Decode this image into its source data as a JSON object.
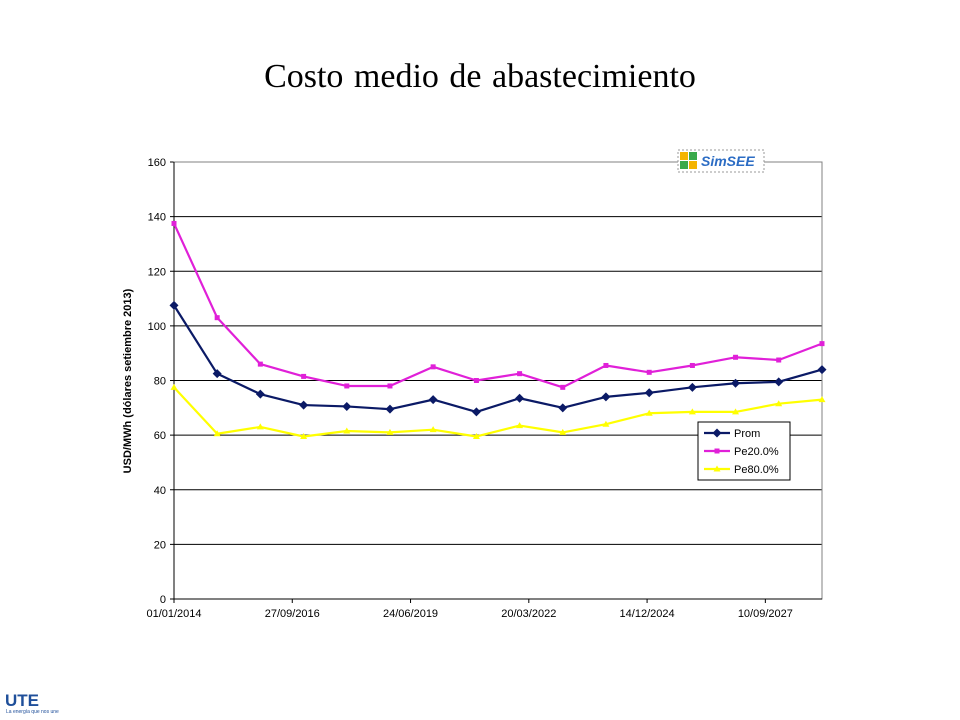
{
  "title": "Costo medio de abastecimiento",
  "brand": {
    "simsee_label": "SimSEE",
    "ute_label": "UTE",
    "ute_tagline": "La energía que nos une"
  },
  "colors": {
    "prom": "#0b1a66",
    "pe20": "#e020d8",
    "pe80": "#ffff00",
    "grid": "#000000"
  },
  "chart_data": {
    "type": "line",
    "title": "",
    "xlabel": "",
    "ylabel": "USD/MWh (dólares setiembre 2013)",
    "ylim": [
      0,
      160
    ],
    "yticks": [
      0,
      20,
      40,
      60,
      80,
      100,
      120,
      140,
      160
    ],
    "xtick_labels": [
      "01/01/2014",
      "27/09/2016",
      "24/06/2019",
      "20/03/2022",
      "14/12/2024",
      "10/09/2027"
    ],
    "xtick_dates": [
      "2014-01-01",
      "2016-09-27",
      "2019-06-24",
      "2022-03-20",
      "2024-12-14",
      "2027-09-10"
    ],
    "x": [
      "2014-01-01",
      "2015-01-01",
      "2016-01-01",
      "2017-01-01",
      "2018-01-01",
      "2019-01-01",
      "2020-01-01",
      "2021-01-01",
      "2022-01-01",
      "2023-01-01",
      "2024-01-01",
      "2025-01-01",
      "2026-01-01",
      "2027-01-01",
      "2028-01-01",
      "2029-01-01"
    ],
    "grid": true,
    "legend": "bottom-right",
    "series": [
      {
        "name": "Prom",
        "marker": "diamond",
        "values": [
          107.5,
          82.5,
          75,
          71,
          70.5,
          69.5,
          73,
          68.5,
          73.5,
          70,
          74,
          75.5,
          77.5,
          79,
          79.5,
          84
        ]
      },
      {
        "name": "Pe20.0%",
        "marker": "square",
        "values": [
          137.5,
          103,
          86,
          81.5,
          78,
          78,
          85,
          80,
          82.5,
          77.5,
          85.5,
          83,
          85.5,
          88.5,
          87.5,
          93.5
        ]
      },
      {
        "name": "Pe80.0%",
        "marker": "triangle",
        "values": [
          77.5,
          60.5,
          63,
          59.5,
          61.5,
          61,
          62,
          59.5,
          63.5,
          61,
          64,
          68,
          68.5,
          68.5,
          71.5,
          73
        ]
      }
    ]
  }
}
